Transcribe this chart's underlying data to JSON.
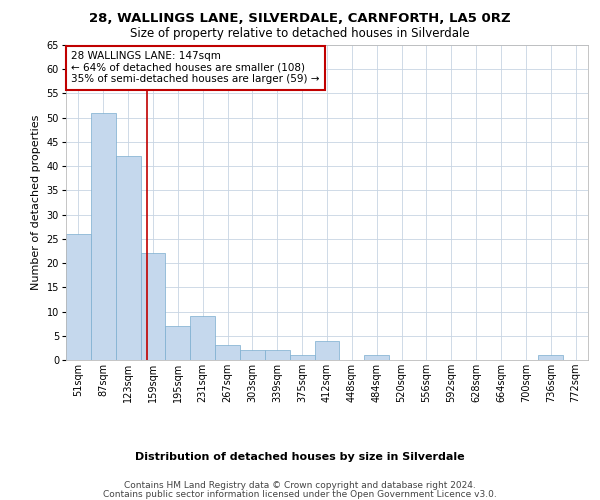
{
  "title1": "28, WALLINGS LANE, SILVERDALE, CARNFORTH, LA5 0RZ",
  "title2": "Size of property relative to detached houses in Silverdale",
  "xlabel": "Distribution of detached houses by size in Silverdale",
  "ylabel": "Number of detached properties",
  "categories": [
    "51sqm",
    "87sqm",
    "123sqm",
    "159sqm",
    "195sqm",
    "231sqm",
    "267sqm",
    "303sqm",
    "339sqm",
    "375sqm",
    "412sqm",
    "448sqm",
    "484sqm",
    "520sqm",
    "556sqm",
    "592sqm",
    "628sqm",
    "664sqm",
    "700sqm",
    "736sqm",
    "772sqm"
  ],
  "values": [
    26,
    51,
    42,
    22,
    7,
    9,
    3,
    2,
    2,
    1,
    4,
    0,
    1,
    0,
    0,
    0,
    0,
    0,
    0,
    1,
    0
  ],
  "bar_color": "#c5d8ed",
  "bar_edge_color": "#7aadcf",
  "bar_width": 1.0,
  "vline_x": 2.77,
  "vline_color": "#c00000",
  "annotation_text": "28 WALLINGS LANE: 147sqm\n← 64% of detached houses are smaller (108)\n35% of semi-detached houses are larger (59) →",
  "annotation_box_color": "#ffffff",
  "annotation_box_edge_color": "#c00000",
  "ylim": [
    0,
    65
  ],
  "yticks": [
    0,
    5,
    10,
    15,
    20,
    25,
    30,
    35,
    40,
    45,
    50,
    55,
    60,
    65
  ],
  "footer1": "Contains HM Land Registry data © Crown copyright and database right 2024.",
  "footer2": "Contains public sector information licensed under the Open Government Licence v3.0.",
  "bg_color": "#ffffff",
  "grid_color": "#c8d4e3",
  "title1_fontsize": 9.5,
  "title2_fontsize": 8.5,
  "axis_ylabel_fontsize": 8,
  "axis_xlabel_fontsize": 8,
  "tick_fontsize": 7,
  "annotation_fontsize": 7.5,
  "footer_fontsize": 6.5
}
